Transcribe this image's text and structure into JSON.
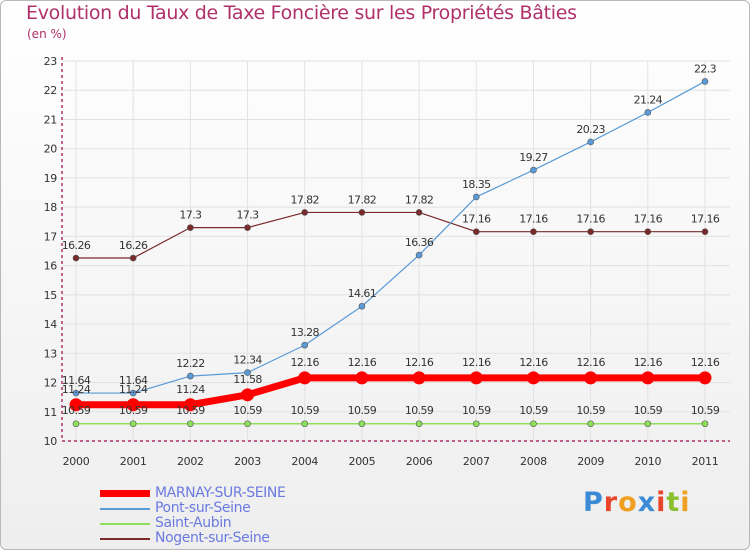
{
  "chart_data": {
    "type": "line",
    "title": "Evolution du Taux de Taxe Foncière sur les Propriétés Bâties",
    "subtitle": "(en %)",
    "xlabel": "",
    "ylabel": "(en %)",
    "x": [
      "2000",
      "2001",
      "2002",
      "2003",
      "2004",
      "2005",
      "2006",
      "2007",
      "2008",
      "2009",
      "2010",
      "2011"
    ],
    "ylim": [
      10,
      23
    ],
    "yticks": [
      "10",
      "11",
      "12",
      "13",
      "14",
      "15",
      "16",
      "17",
      "18",
      "19",
      "20",
      "21",
      "22",
      "23"
    ],
    "grid": true,
    "legend_position": "bottom-left",
    "series": [
      {
        "name": "Nogent-sur-Seine",
        "color": "#7a2a2a",
        "values": [
          16.26,
          16.26,
          17.3,
          17.3,
          17.82,
          17.82,
          17.82,
          17.16,
          17.16,
          17.16,
          17.16,
          17.16
        ],
        "labels": [
          "16.26",
          "16.26",
          "17.3",
          "17.3",
          "17.82",
          "17.82",
          "17.82",
          "17.16",
          "17.16",
          "17.16",
          "17.16",
          "17.16"
        ]
      },
      {
        "name": "Saint-Aubin",
        "color": "#8ee05a",
        "values": [
          10.59,
          10.59,
          10.59,
          10.59,
          10.59,
          10.59,
          10.59,
          10.59,
          10.59,
          10.59,
          10.59,
          10.59
        ],
        "labels": [
          "10.59",
          "10.59",
          "10.59",
          "10.59",
          "10.59",
          "10.59",
          "10.59",
          "10.59",
          "10.59",
          "10.59",
          "10.59",
          "10.59"
        ]
      },
      {
        "name": "Pont-sur-Seine",
        "color": "#5a9ad6",
        "values": [
          11.64,
          11.64,
          12.22,
          12.34,
          13.28,
          14.61,
          16.36,
          18.35,
          19.27,
          20.23,
          21.24,
          22.3
        ],
        "labels": [
          "11.64",
          "11.64",
          "12.22",
          "12.34",
          "13.28",
          "14.61",
          "16.36",
          "18.35",
          "19.27",
          "20.23",
          "21.24",
          "22.3"
        ]
      },
      {
        "name": "MARNAY-SUR-SEINE",
        "color": "#ff0000",
        "values": [
          11.24,
          11.24,
          11.24,
          11.58,
          12.16,
          12.16,
          12.16,
          12.16,
          12.16,
          12.16,
          12.16,
          12.16
        ],
        "labels": [
          "11.24",
          "11.24",
          "11.24",
          "11.58",
          "12.16",
          "12.16",
          "12.16",
          "12.16",
          "12.16",
          "12.16",
          "12.16",
          "12.16"
        ]
      }
    ],
    "legend": [
      {
        "name": "MARNAY-SUR-SEINE",
        "color": "#ff0000",
        "text_color": "#6a7ae0"
      },
      {
        "name": "Pont-sur-Seine",
        "color": "#5a9ad6",
        "text_color": "#6a7ae0"
      },
      {
        "name": "Saint-Aubin",
        "color": "#8ee05a",
        "text_color": "#6a7ae0"
      },
      {
        "name": "Nogent-sur-Seine",
        "color": "#7a2a2a",
        "text_color": "#6a7ae0"
      }
    ]
  },
  "logo": {
    "text": "Proxiti",
    "colors": [
      "#3a8ad6",
      "#e8452a",
      "#f0a020",
      "#3a8ad6",
      "#e8452a",
      "#8ac030",
      "#f0a020"
    ]
  }
}
